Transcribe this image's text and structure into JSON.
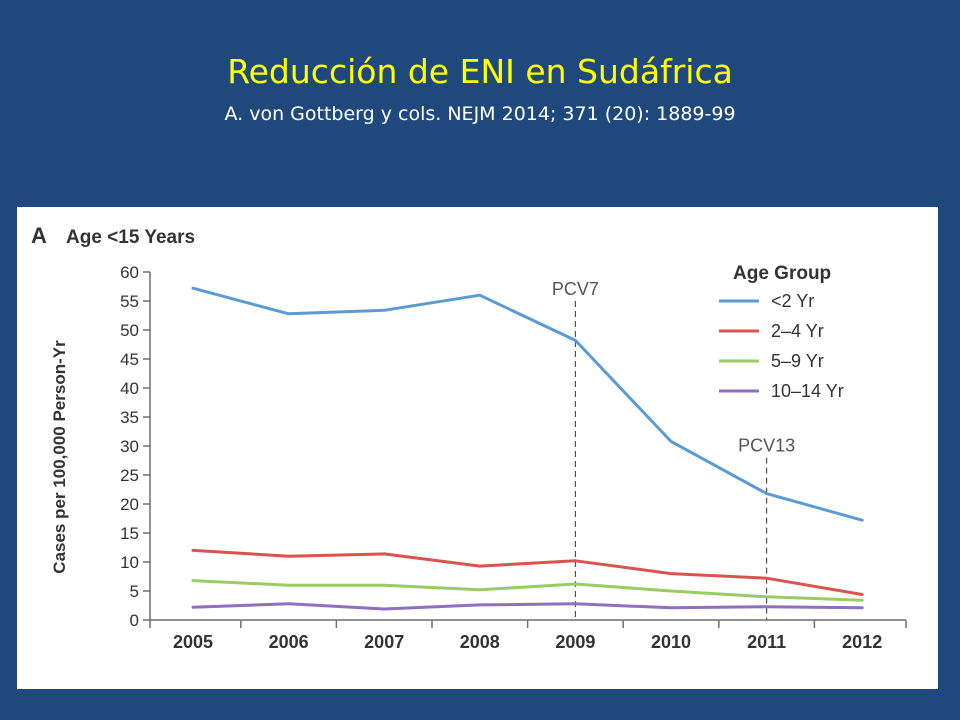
{
  "slide": {
    "title": "Reducción de ENI en Sudáfrica",
    "subtitle": "A. von Gottberg y cols. NEJM 2014; 371 (20): 1889-99"
  },
  "chart_data": {
    "type": "line",
    "panel_label": "A",
    "title": "Age <15 Years",
    "xlabel": "",
    "ylabel": "Cases per 100,000 Person-Yr",
    "x": [
      "2005",
      "2006",
      "2007",
      "2008",
      "2009",
      "2010",
      "2011",
      "2012"
    ],
    "ylim": [
      0,
      60
    ],
    "yticks": [
      0,
      5,
      10,
      15,
      20,
      25,
      30,
      35,
      40,
      45,
      50,
      55,
      60
    ],
    "grid": false,
    "legend": {
      "title": "Age Group",
      "position": "top-right"
    },
    "series": [
      {
        "name": "<2 Yr",
        "color": "#5b9bd5",
        "values": [
          57.2,
          52.8,
          53.4,
          56.0,
          48.2,
          30.8,
          21.8,
          17.2
        ]
      },
      {
        "name": "2–4 Yr",
        "color": "#d9534f",
        "values": [
          12.0,
          11.0,
          11.4,
          9.3,
          10.2,
          8.0,
          7.2,
          4.4
        ]
      },
      {
        "name": "5–9 Yr",
        "color": "#9bcb63",
        "values": [
          6.8,
          6.0,
          6.0,
          5.2,
          6.2,
          5.0,
          4.0,
          3.4
        ]
      },
      {
        "name": "10–14 Yr",
        "color": "#8e6fc1",
        "values": [
          2.2,
          2.8,
          1.9,
          2.6,
          2.8,
          2.1,
          2.3,
          2.1
        ]
      }
    ],
    "annotations": [
      {
        "text": "PCV7",
        "x": "2009",
        "y_top": 55
      },
      {
        "text": "PCV13",
        "x": "2011",
        "y_top": 28
      }
    ]
  }
}
